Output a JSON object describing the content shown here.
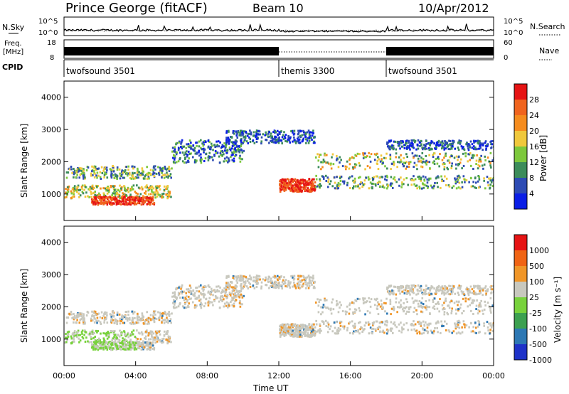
{
  "header": {
    "station": "Prince George (fitACF)",
    "beam": "Beam 10",
    "date": "10/Apr/2012"
  },
  "colors": {
    "power_scale": [
      "#0a1ee6",
      "#2d4bb4",
      "#3c8c5a",
      "#7dc83c",
      "#f0c83c",
      "#f58c1e",
      "#f0641e",
      "#e61414"
    ],
    "velocity_scale": [
      "#1e32c8",
      "#2d78b4",
      "#3ca050",
      "#78d23c",
      "#c8c8be",
      "#f09628",
      "#f06414",
      "#e61414"
    ]
  },
  "chart_data": [
    {
      "id": "noise-panel",
      "type": "line",
      "left_label": "N.Sky",
      "right_label": "N.Search",
      "left_ticks": [
        "10^5",
        "10^0"
      ],
      "right_ticks": [
        "10^5",
        "10^0"
      ]
    },
    {
      "id": "freq-panel",
      "type": "area",
      "left_label_1": "Freq.",
      "left_label_2": "[MHz]",
      "right_label": "Nave",
      "left_ticks": [
        "18",
        "8"
      ],
      "right_ticks": [
        "60",
        "0"
      ]
    },
    {
      "id": "cpid-panel",
      "type": "table",
      "label": "CPID",
      "segments": [
        {
          "name": "twofsound 3501",
          "start_hr": 0,
          "end_hr": 12
        },
        {
          "name": "themis 3300",
          "start_hr": 12,
          "end_hr": 18
        },
        {
          "name": "twofsound 3501",
          "start_hr": 18,
          "end_hr": 24
        }
      ]
    },
    {
      "id": "power-panel",
      "type": "heatmap",
      "ylabel": "Slant Range [km]",
      "ylim": [
        180,
        4500
      ],
      "yticks": [
        1000,
        2000,
        3000,
        4000
      ],
      "colorbar_label": "Power [dB]",
      "colorbar_ticks": [
        "28",
        "24",
        "20",
        "16",
        "12",
        "8",
        "4"
      ]
    },
    {
      "id": "velocity-panel",
      "type": "heatmap",
      "ylabel": "Slant Range [km]",
      "ylim": [
        180,
        4500
      ],
      "yticks": [
        1000,
        2000,
        3000,
        4000
      ],
      "colorbar_label": "Velocity  [m s⁻¹]",
      "colorbar_ticks": [
        "1000",
        "500",
        "100",
        "25",
        "-25",
        "-100",
        "-500",
        "-1000"
      ]
    }
  ],
  "x_axis": {
    "label": "Time UT",
    "xlim": [
      0,
      24
    ],
    "tick_hours": [
      0,
      4,
      8,
      12,
      16,
      20,
      24
    ],
    "tick_labels": [
      "00:00",
      "04:00",
      "08:00",
      "12:00",
      "16:00",
      "20:00",
      "00:00"
    ]
  }
}
